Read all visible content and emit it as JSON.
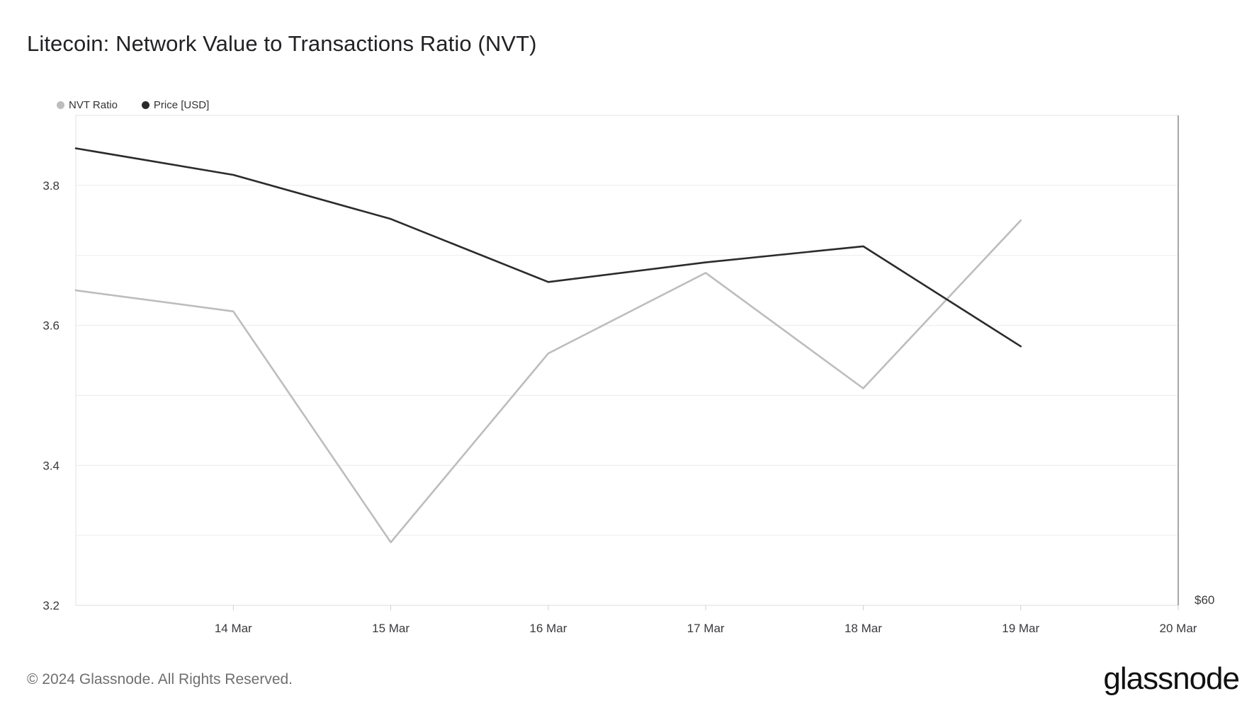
{
  "title": "Litecoin: Network Value to Transactions Ratio (NVT)",
  "footer": "© 2024 Glassnode. All Rights Reserved.",
  "brand": "glassnode",
  "legend": [
    {
      "label": "NVT Ratio",
      "color": "#bdbdbd"
    },
    {
      "label": "Price [USD]",
      "color": "#2b2b2b"
    }
  ],
  "chart_data": {
    "type": "line",
    "title": "Litecoin: Network Value to Transactions Ratio (NVT)",
    "x": [
      "2024-03-13",
      "2024-03-14",
      "2024-03-15",
      "2024-03-16",
      "2024-03-17",
      "2024-03-18",
      "2024-03-19"
    ],
    "x_ticks": [
      "14 Mar",
      "15 Mar",
      "16 Mar",
      "17 Mar",
      "18 Mar",
      "19 Mar",
      "20 Mar"
    ],
    "xlim": [
      "2024-03-13",
      "2024-03-20"
    ],
    "y_left_ticks": [
      "3.2",
      "3.4",
      "3.6",
      "3.8"
    ],
    "y_left_lim": [
      3.2,
      3.9
    ],
    "y_right_ticks": [
      "$60"
    ],
    "grid": true,
    "legend_position": "top-left",
    "series": [
      {
        "name": "NVT Ratio",
        "axis": "left",
        "color": "#bdbdbd",
        "values": [
          3.65,
          3.62,
          3.29,
          3.56,
          3.675,
          3.51,
          3.75
        ]
      },
      {
        "name": "Price [USD]",
        "axis": "left-scaled",
        "color": "#2b2b2b",
        "values": [
          3.853,
          3.815,
          3.752,
          3.662,
          3.69,
          3.713,
          3.57
        ]
      }
    ]
  }
}
